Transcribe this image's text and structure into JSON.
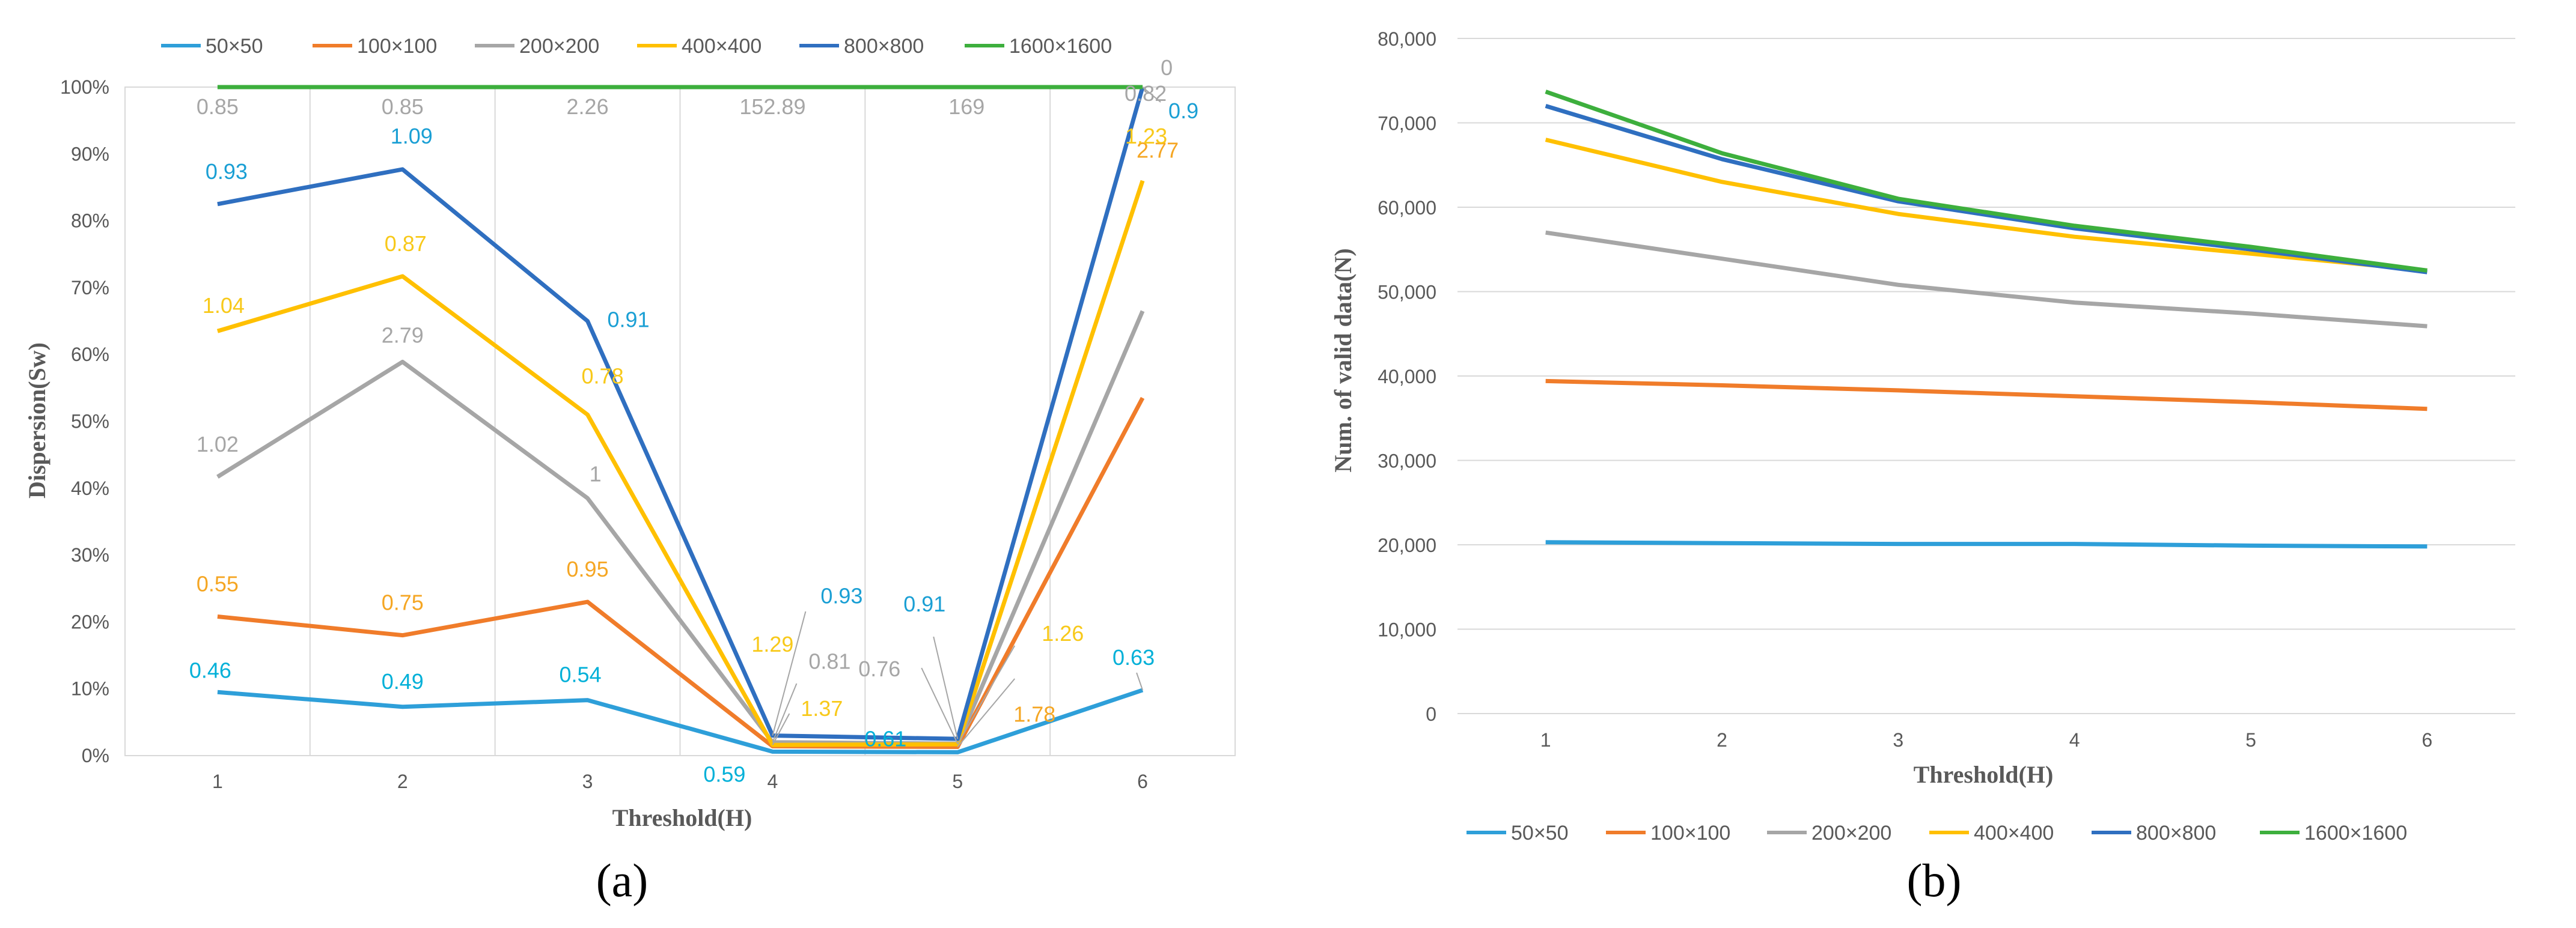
{
  "colors": {
    "s50": "#2E9FD9",
    "s100": "#F07C2A",
    "s200": "#A6A6A6",
    "s400": "#FFC000",
    "s800": "#2F6FC0",
    "s1600": "#3DAF3D",
    "label50": "#00B0D8",
    "label100": "#F5A623",
    "label200": "#A6A6A6",
    "label400": "#F8C91A",
    "label800": "#1A9FD4",
    "grid": "#D9D9D9"
  },
  "panels": {
    "a_label": "(a)",
    "b_label": "(b)"
  },
  "chart_data": [
    {
      "type": "line",
      "title": "",
      "xlabel": "Threshold(H)",
      "ylabel": "Dispersion(Sw)",
      "x": [
        1,
        2,
        3,
        4,
        5,
        6
      ],
      "xticks": [
        "1",
        "2",
        "3",
        "4",
        "5",
        "6"
      ],
      "ylim": [
        0,
        100
      ],
      "yticks": [
        "0%",
        "10%",
        "20%",
        "30%",
        "40%",
        "50%",
        "60%",
        "70%",
        "80%",
        "90%",
        "100%"
      ],
      "legend_position": "top",
      "series": [
        {
          "name": "50×50",
          "values": [
            9.5,
            7.3,
            8.3,
            0.6,
            0.5,
            9.8
          ],
          "labels": [
            "0.46",
            "0.49",
            "0.54",
            "0.59",
            "0.61",
            "0.63"
          ]
        },
        {
          "name": "100×100",
          "values": [
            20.8,
            18.0,
            23.0,
            1.4,
            1.3,
            53.5
          ],
          "labels": [
            "0.55",
            "0.75",
            "0.95",
            "",
            "1.78",
            "2.77"
          ]
        },
        {
          "name": "200×200",
          "values": [
            41.7,
            58.9,
            38.5,
            2.0,
            1.8,
            66.5
          ],
          "labels": [
            "1.02",
            "2.79",
            "1",
            "0.81",
            "0.76",
            "0.82"
          ]
        },
        {
          "name": "400×400",
          "values": [
            63.5,
            71.7,
            51.0,
            1.6,
            1.7,
            86.0
          ],
          "labels": [
            "1.04",
            "0.87",
            "0.78",
            "1.37",
            "1.26",
            "1.23"
          ]
        },
        {
          "name": "800×800",
          "values": [
            82.5,
            87.7,
            65.0,
            3.0,
            2.5,
            100
          ],
          "labels": [
            "0.93",
            "1.09",
            "0.91",
            "0.93",
            "0.91",
            "0.9"
          ]
        },
        {
          "name": "1600×1600",
          "values": [
            100,
            100,
            100,
            100,
            100,
            100
          ],
          "labels": [
            "0.85",
            "0.85",
            "2.26",
            "152.89",
            "169",
            "0"
          ]
        }
      ],
      "extra_labels": [
        "1.29"
      ]
    },
    {
      "type": "line",
      "title": "",
      "xlabel": "Threshold(H)",
      "ylabel": "Num. of valid data(N)",
      "x": [
        1,
        2,
        3,
        4,
        5,
        6
      ],
      "xticks": [
        "1",
        "2",
        "3",
        "4",
        "5",
        "6"
      ],
      "ylim": [
        0,
        80000
      ],
      "yticks": [
        "0",
        "10,000",
        "20,000",
        "30,000",
        "40,000",
        "50,000",
        "60,000",
        "70,000",
        "80,000"
      ],
      "legend_position": "bottom",
      "series": [
        {
          "name": "50×50",
          "values": [
            20300,
            20200,
            20100,
            20100,
            19900,
            19800
          ]
        },
        {
          "name": "100×100",
          "values": [
            39400,
            38900,
            38300,
            37600,
            36900,
            36100
          ]
        },
        {
          "name": "200×200",
          "values": [
            57000,
            53900,
            50800,
            48700,
            47400,
            45900
          ]
        },
        {
          "name": "400×400",
          "values": [
            68000,
            63000,
            59200,
            56500,
            54500,
            52500
          ]
        },
        {
          "name": "800×800",
          "values": [
            72000,
            65700,
            60700,
            57500,
            55000,
            52300
          ]
        },
        {
          "name": "1600×1600",
          "values": [
            73700,
            66400,
            61000,
            57800,
            55300,
            52500
          ]
        }
      ]
    }
  ]
}
